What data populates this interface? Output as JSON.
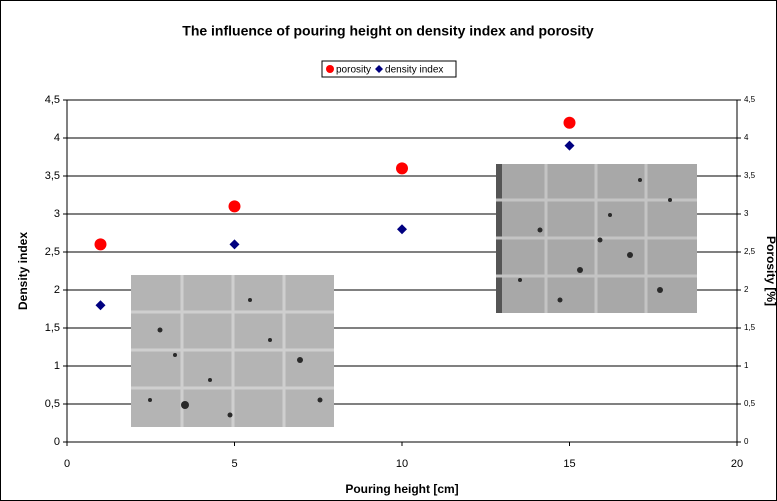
{
  "chart_data": {
    "type": "scatter",
    "title": "The influence of pouring height on density index and porosity",
    "x_label": "Pouring height [cm]",
    "y_label": "Density index",
    "y2_label": "Porosity [%]",
    "x": [
      1,
      5,
      10,
      15
    ],
    "series": [
      {
        "name": "porosity",
        "color": "#ff0000",
        "marker": "circle",
        "axis": "y2",
        "values": [
          2.6,
          3.1,
          3.6,
          4.2
        ]
      },
      {
        "name": "density index",
        "color": "#000080",
        "marker": "diamond",
        "values": [
          1.8,
          2.6,
          2.8,
          3.9
        ]
      }
    ],
    "xlim": [
      0,
      20
    ],
    "xticks": [
      0,
      5,
      10,
      15,
      20
    ],
    "ylim": [
      0,
      4.5
    ],
    "yticks": [
      0,
      {
        "value": 0.5,
        "label": "0,5"
      },
      1,
      {
        "value": 1.5,
        "label": "1,5"
      },
      2,
      {
        "value": 2.5,
        "label": "2,5"
      },
      3,
      {
        "value": 3.5,
        "label": "3,5"
      },
      4,
      {
        "value": 4.5,
        "label": "4,5"
      }
    ],
    "y2lim": [
      0,
      4.5
    ],
    "y2ticks": [
      0,
      {
        "value": 0.5,
        "label": "0,5"
      },
      1,
      {
        "value": 1.5,
        "label": "1,5"
      },
      2,
      {
        "value": 2.5,
        "label": "2,5"
      },
      3,
      {
        "value": 3.5,
        "label": "3,5"
      },
      4,
      {
        "value": 4.5,
        "label": "4,5"
      }
    ],
    "grid": true,
    "legend": "top"
  }
}
